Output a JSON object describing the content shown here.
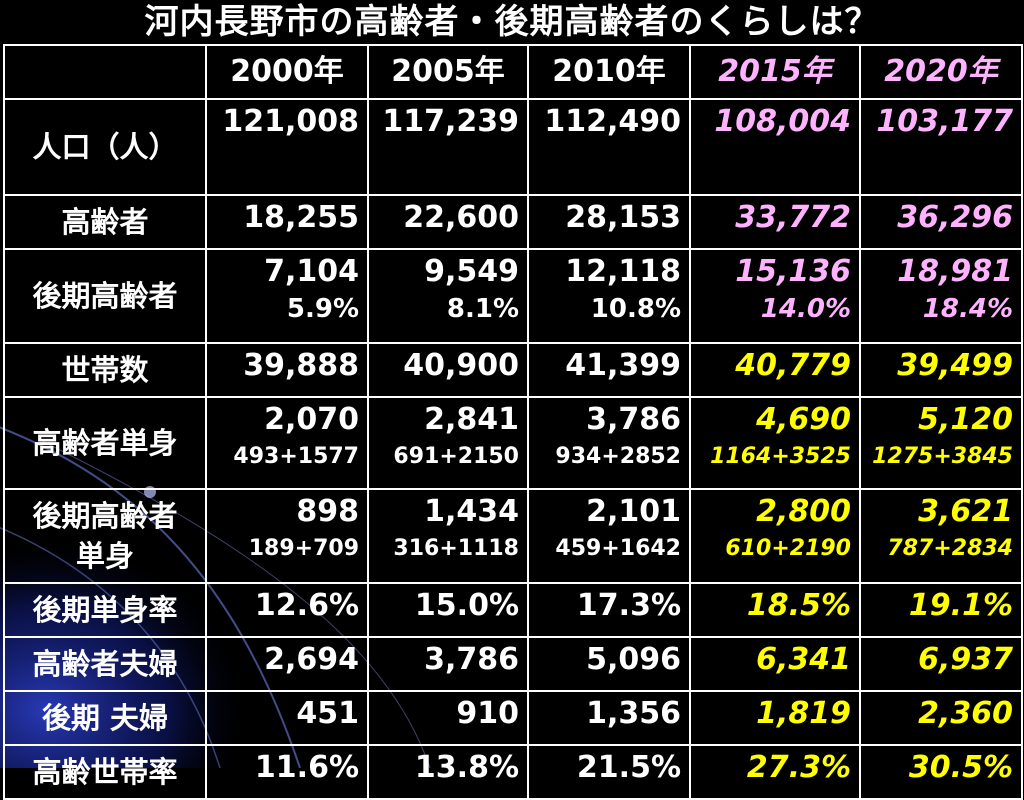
{
  "title": "河内長野市の高齢者・後期高齢者のくらしは？",
  "columns": [
    "",
    "2000年",
    "2005年",
    "2010年",
    "2015年",
    "2020年"
  ],
  "column_styles": [
    "",
    "",
    "",
    "",
    "pink",
    "pink"
  ],
  "rows": [
    {
      "label": "人口（人）",
      "cells": [
        {
          "v": "121,008"
        },
        {
          "v": "117,239"
        },
        {
          "v": "112,490"
        },
        {
          "v": "108,004",
          "c": "pink"
        },
        {
          "v": "103,177",
          "c": "pink"
        }
      ]
    },
    {
      "label": "高齢者",
      "cells": [
        {
          "v": "18,255"
        },
        {
          "v": "22,600"
        },
        {
          "v": "28,153"
        },
        {
          "v": "33,772",
          "c": "pink"
        },
        {
          "v": "36,296",
          "c": "pink"
        }
      ]
    },
    {
      "label": "後期高齢者",
      "cells": [
        {
          "v": "7,104",
          "s": "5.9%"
        },
        {
          "v": "9,549",
          "s": "8.1%"
        },
        {
          "v": "12,118",
          "s": "10.8%"
        },
        {
          "v": "15,136",
          "s": "14.0%",
          "c": "pink"
        },
        {
          "v": "18,981",
          "s": "18.4%",
          "c": "pink"
        }
      ],
      "subclass": "pct"
    },
    {
      "label": "世帯数",
      "cells": [
        {
          "v": "39,888"
        },
        {
          "v": "40,900"
        },
        {
          "v": "41,399"
        },
        {
          "v": "40,779",
          "c": "yellow"
        },
        {
          "v": "39,499",
          "c": "yellow"
        }
      ]
    },
    {
      "label": "高齢者単身",
      "cells": [
        {
          "v": "2,070",
          "s": "493+1577"
        },
        {
          "v": "2,841",
          "s": "691+2150"
        },
        {
          "v": "3,786",
          "s": "934+2852"
        },
        {
          "v": "4,690",
          "s": "1164+3525",
          "c": "yellow"
        },
        {
          "v": "5,120",
          "s": "1275+3845",
          "c": "yellow"
        }
      ]
    },
    {
      "label": "後期高齢者単身",
      "label_lines": [
        "後期高齢者",
        "単身"
      ],
      "cells": [
        {
          "v": "898",
          "s": "189+709"
        },
        {
          "v": "1,434",
          "s": "316+1118"
        },
        {
          "v": "2,101",
          "s": "459+1642"
        },
        {
          "v": "2,800",
          "s": "610+2190",
          "c": "yellow"
        },
        {
          "v": "3,621",
          "s": "787+2834",
          "c": "yellow"
        }
      ]
    },
    {
      "label": "後期単身率",
      "cells": [
        {
          "v": "12.6%"
        },
        {
          "v": "15.0%"
        },
        {
          "v": "17.3%"
        },
        {
          "v": "18.5%",
          "c": "yellow"
        },
        {
          "v": "19.1%",
          "c": "yellow"
        }
      ]
    },
    {
      "label": "高齢者夫婦",
      "cells": [
        {
          "v": "2,694"
        },
        {
          "v": "3,786"
        },
        {
          "v": "5,096"
        },
        {
          "v": "6,341",
          "c": "yellow"
        },
        {
          "v": "6,937",
          "c": "yellow"
        }
      ]
    },
    {
      "label": "後期 夫婦",
      "cells": [
        {
          "v": "451"
        },
        {
          "v": "910"
        },
        {
          "v": "1,356"
        },
        {
          "v": "1,819",
          "c": "yellow"
        },
        {
          "v": "2,360",
          "c": "yellow"
        }
      ]
    },
    {
      "label": "高齢世帯率",
      "cells": [
        {
          "v": "11.6%"
        },
        {
          "v": "13.8%"
        },
        {
          "v": "21.5%"
        },
        {
          "v": "27.3%",
          "c": "yellow"
        },
        {
          "v": "30.5%",
          "c": "yellow"
        }
      ]
    }
  ],
  "colors": {
    "background": "#000000",
    "text": "#ffffff",
    "projection_pink": "#ffb3ff",
    "projection_yellow": "#ffff00",
    "deco_blue": "#1a2a8a"
  }
}
